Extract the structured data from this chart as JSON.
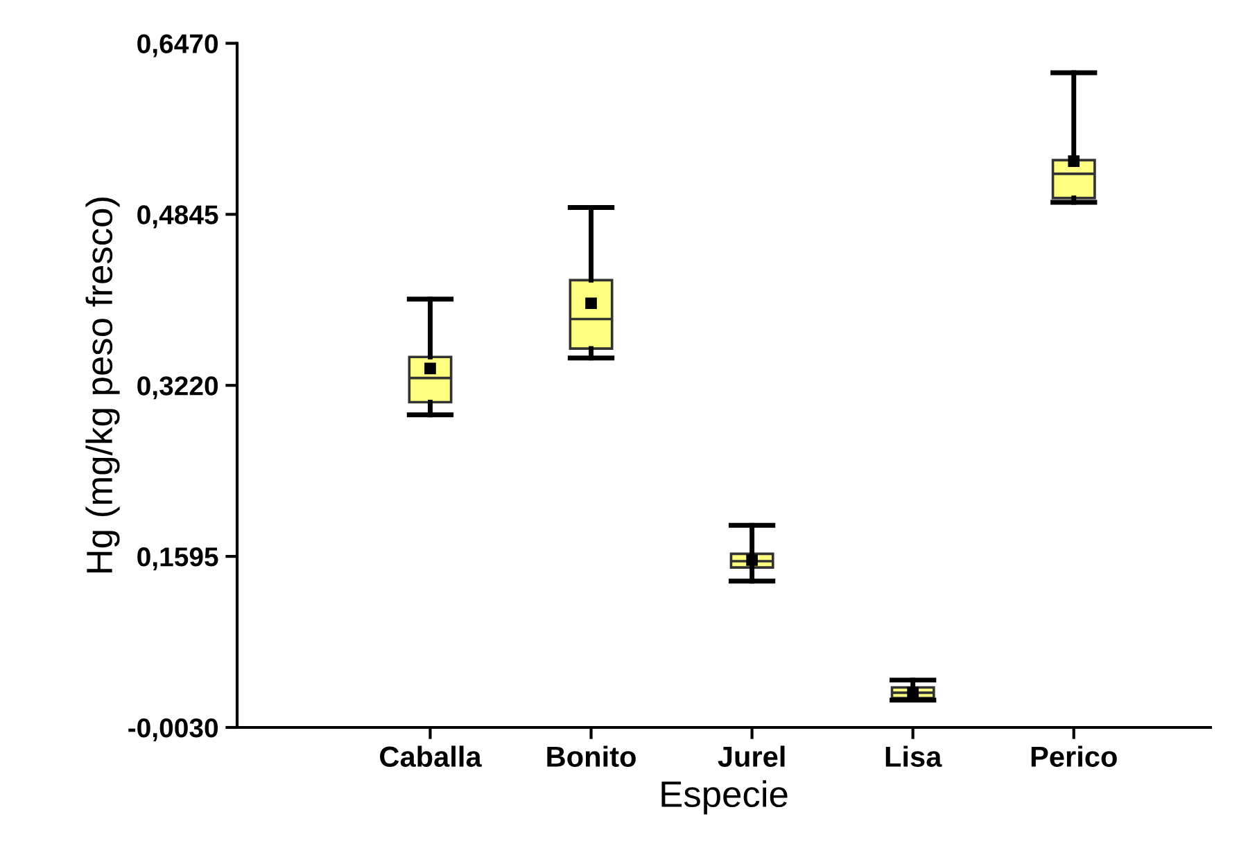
{
  "chart_data": {
    "type": "box",
    "xlabel": "Especie",
    "ylabel": "Hg (mg/kg peso fresco)",
    "categories": [
      "Caballa",
      "Bonito",
      "Jurel",
      "Lisa",
      "Perico"
    ],
    "color": "#ffff80",
    "boxes": [
      {
        "low": 0.294,
        "q1": 0.306,
        "median": 0.329,
        "q3": 0.349,
        "high": 0.404,
        "mean": 0.338
      },
      {
        "low": 0.348,
        "q1": 0.357,
        "median": 0.385,
        "q3": 0.422,
        "high": 0.491,
        "mean": 0.4
      },
      {
        "low": 0.136,
        "q1": 0.149,
        "median": 0.155,
        "q3": 0.162,
        "high": 0.189,
        "mean": 0.156
      },
      {
        "low": 0.023,
        "q1": 0.025,
        "median": 0.03,
        "q3": 0.035,
        "high": 0.042,
        "mean": 0.03
      },
      {
        "low": 0.496,
        "q1": 0.5,
        "median": 0.523,
        "q3": 0.536,
        "high": 0.619,
        "mean": 0.535
      }
    ],
    "ylim": [
      -0.003,
      0.647
    ],
    "yticks": [
      {
        "value": -0.003,
        "label": "-0,0030"
      },
      {
        "value": 0.1595,
        "label": "0,1595"
      },
      {
        "value": 0.322,
        "label": "0,3220"
      },
      {
        "value": 0.4845,
        "label": "0,4845"
      },
      {
        "value": 0.647,
        "label": "0,6470"
      }
    ],
    "grid": false,
    "legend": false
  }
}
